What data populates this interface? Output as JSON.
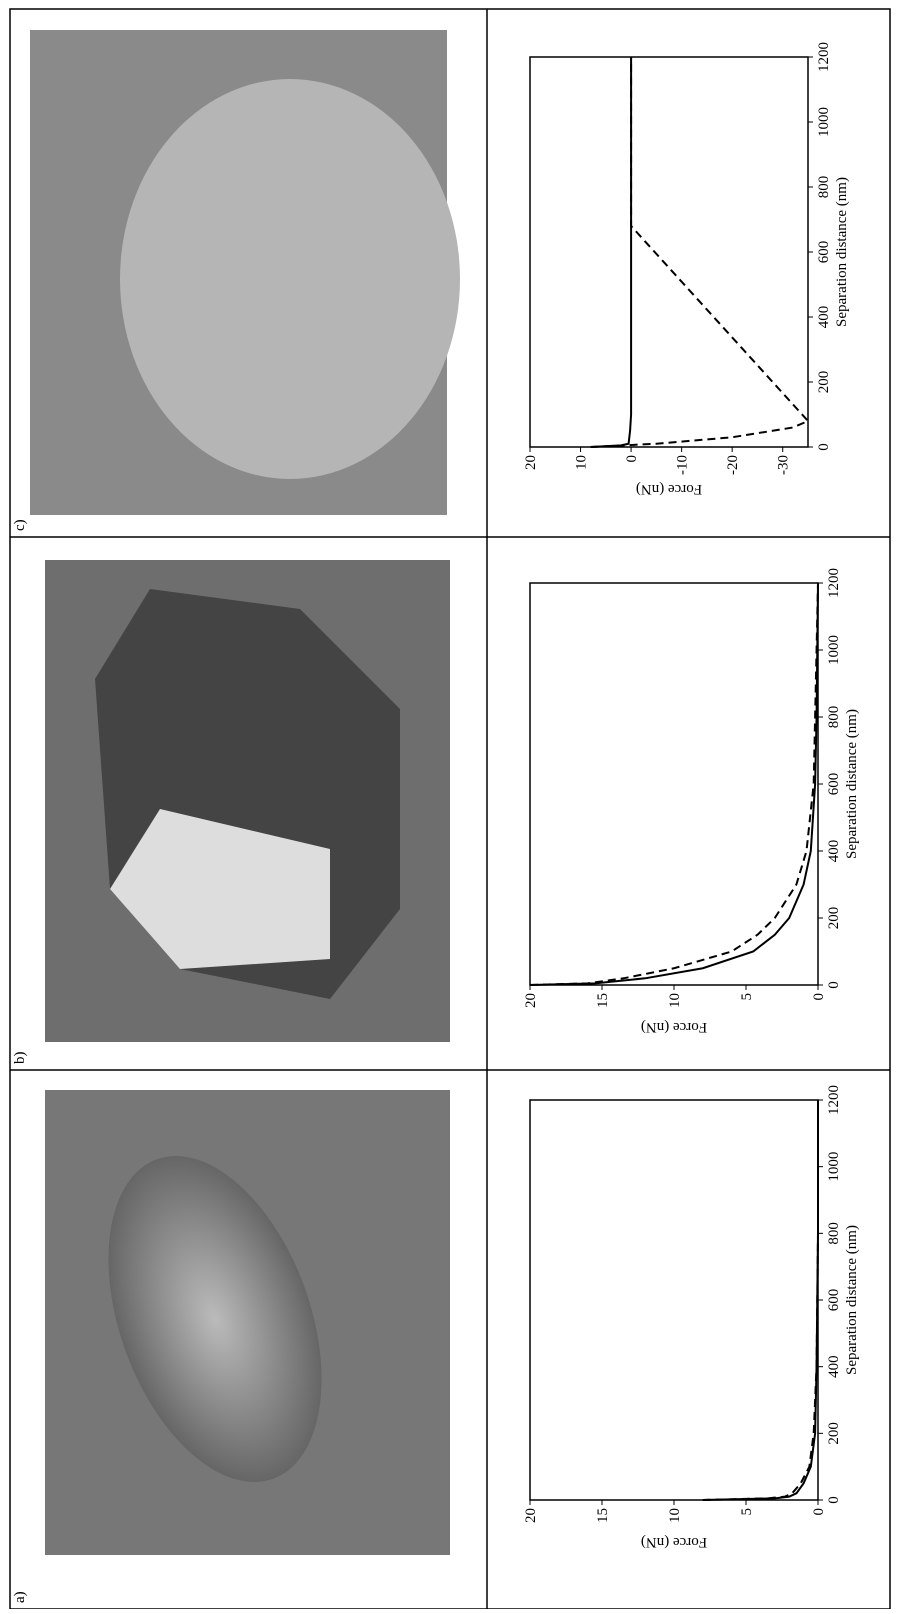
{
  "chart_data": [
    {
      "type": "line",
      "panel_label": "a)",
      "xlabel": "Separation distance (nm)",
      "ylabel": "Force (nN)",
      "xlim": [
        0,
        1200
      ],
      "xticks": [
        0,
        200,
        400,
        600,
        800,
        1000,
        1200
      ],
      "ylim": [
        0,
        20
      ],
      "yticks": [
        0,
        5,
        10,
        15,
        20
      ],
      "series": [
        {
          "color": "#000000",
          "dash": false,
          "x": [
            0,
            5,
            10,
            20,
            50,
            100,
            200,
            400,
            800,
            1200
          ],
          "values": [
            8,
            3,
            2,
            1.5,
            1,
            0.5,
            0.2,
            0.1,
            0,
            0
          ]
        },
        {
          "color": "#000000",
          "dash": true,
          "x": [
            0,
            5,
            10,
            20,
            50,
            100,
            200,
            400,
            800,
            1200
          ],
          "values": [
            8,
            3.5,
            2.3,
            1.8,
            1.2,
            0.6,
            0.3,
            0.1,
            0,
            0
          ]
        }
      ]
    },
    {
      "type": "line",
      "panel_label": "b)",
      "xlabel": "Separation distance (nm)",
      "ylabel": "Force (nN)",
      "xlim": [
        0,
        1200
      ],
      "xticks": [
        0,
        200,
        400,
        600,
        800,
        1000,
        1200
      ],
      "ylim": [
        0,
        20
      ],
      "yticks": [
        0,
        5,
        10,
        15,
        20
      ],
      "series": [
        {
          "color": "#000000",
          "dash": false,
          "x": [
            0,
            5,
            20,
            50,
            100,
            150,
            200,
            300,
            400,
            600,
            800,
            1200
          ],
          "values": [
            20,
            15.5,
            12,
            8,
            4.5,
            3,
            2,
            1,
            0.5,
            0.2,
            0.1,
            0
          ]
        },
        {
          "color": "#000000",
          "dash": true,
          "x": [
            0,
            5,
            20,
            50,
            100,
            150,
            200,
            300,
            400,
            600,
            800,
            1200
          ],
          "values": [
            20,
            16,
            13.5,
            10,
            6,
            4.2,
            3,
            1.5,
            0.8,
            0.3,
            0.2,
            0
          ]
        }
      ]
    },
    {
      "type": "line",
      "panel_label": "c)",
      "xlabel": "Separation distance (nm)",
      "ylabel": "Force (nN)",
      "xlim": [
        0,
        1200
      ],
      "xticks": [
        0,
        200,
        400,
        600,
        800,
        1000,
        1200
      ],
      "ylim": [
        -35,
        20
      ],
      "yticks": [
        -30,
        -20,
        -10,
        0,
        10,
        20
      ],
      "series": [
        {
          "color": "#000000",
          "dash": false,
          "x": [
            0,
            5,
            10,
            50,
            100,
            1200
          ],
          "values": [
            8,
            2,
            0.5,
            0.2,
            0,
            0
          ]
        },
        {
          "color": "#000000",
          "dash": true,
          "x": [
            0,
            10,
            30,
            60,
            80,
            680,
            1200
          ],
          "values": [
            8,
            -5,
            -20,
            -32,
            -35,
            0,
            0
          ]
        }
      ]
    }
  ]
}
